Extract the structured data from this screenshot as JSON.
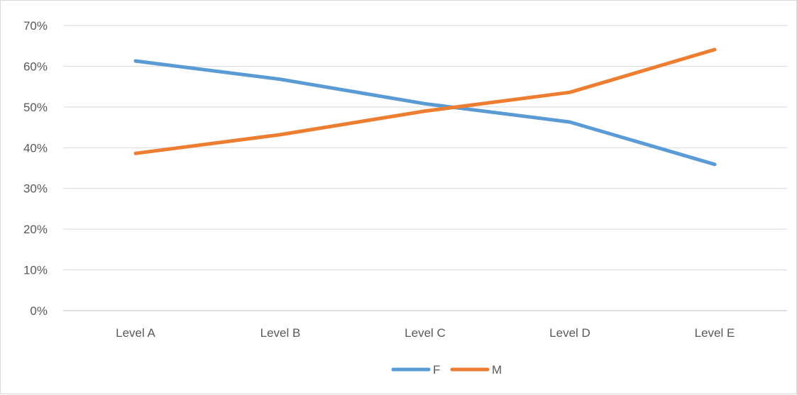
{
  "chart_data": {
    "type": "line",
    "categories": [
      "Level A",
      "Level B",
      "Level C",
      "Level D",
      "Level E"
    ],
    "series": [
      {
        "name": "F",
        "values": [
          61.3,
          56.8,
          50.8,
          46.3,
          35.9
        ],
        "color": "#5b9bd5"
      },
      {
        "name": "M",
        "values": [
          38.6,
          43.2,
          49.0,
          53.6,
          64.1
        ],
        "color": "#ed7d31"
      }
    ],
    "yticks": [
      "0%",
      "10%",
      "20%",
      "30%",
      "40%",
      "50%",
      "60%",
      "70%"
    ],
    "ylim": [
      0,
      70
    ],
    "grid": true,
    "legend_position": "bottom"
  }
}
